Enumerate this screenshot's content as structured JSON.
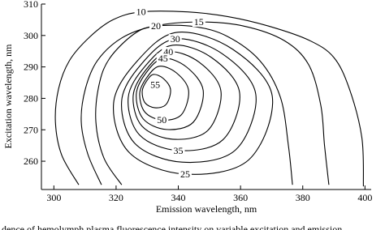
{
  "chart_data": {
    "type": "contour",
    "x_label": "Emission wavelength, nm",
    "y_label": "Excitation wavelength, nm",
    "caption": "dence of hemolymph plasma fluorescence intensity on variable excitation and emission",
    "xlim": [
      296,
      402
    ],
    "xticks": [
      300,
      320,
      340,
      360,
      380,
      400
    ],
    "ylim": [
      251,
      310
    ],
    "yticks": [
      260,
      270,
      280,
      290,
      300,
      310
    ],
    "color": "#000000",
    "contours": [
      {
        "level": 10,
        "closed": false,
        "x": [
          308,
          302.5,
          300.5,
          301.5,
          305,
          311.5,
          319,
          328,
          343,
          356,
          369,
          382,
          390,
          395,
          399,
          399.5
        ],
        "y": [
          252.5,
          262,
          272.5,
          283,
          292,
          299.5,
          305,
          307.5,
          307.5,
          306,
          303,
          298.5,
          293,
          283,
          267.5,
          252
        ]
      },
      {
        "level": 15,
        "closed": false,
        "x": [
          315.3,
          310.9,
          308.8,
          310.1,
          314,
          321.8,
          332.3,
          346.6,
          361,
          374,
          381.9,
          385.8,
          387,
          388.4
        ],
        "y": [
          252.5,
          262.3,
          272.6,
          282.9,
          292,
          299.2,
          303,
          304.3,
          303,
          298.4,
          290.7,
          277.8,
          265,
          252.5
        ]
      },
      {
        "level": 20,
        "closed": false,
        "x": [
          321.8,
          316.1,
          313.5,
          314.5,
          317.9,
          325.8,
          332.8,
          345.3,
          355.8,
          366.2,
          372.8,
          375.4,
          376.7
        ],
        "y": [
          252.5,
          261,
          272.6,
          284.2,
          292.7,
          300.5,
          303,
          302.8,
          299.7,
          292,
          280.4,
          264.9,
          252.5
        ]
      },
      {
        "level": 25,
        "closed": true,
        "x": [
          326.9,
          339.6,
          357.5,
          370.2,
          362.6,
          342.2,
          324.3,
          319.2
        ],
        "y": [
          292,
          301,
          295.6,
          280.7,
          260.4,
          255.9,
          262.7,
          278.5
        ]
      },
      {
        "level": 30,
        "closed": true,
        "x": [
          328.3,
          339,
          354.1,
          364.9,
          358.4,
          341.2,
          326.1,
          321.8
        ],
        "y": [
          291.1,
          298.9,
          294.2,
          281.3,
          263.6,
          259.7,
          265.6,
          279.3
        ]
      },
      {
        "level": 35,
        "closed": true,
        "x": [
          329.3,
          338.2,
          350.8,
          359.7,
          354.3,
          340,
          327.5,
          323.9
        ],
        "y": [
          290.2,
          296.9,
          292.9,
          281.8,
          266.8,
          263.4,
          268.4,
          280.2
        ]
      },
      {
        "level": 40,
        "closed": true,
        "x": [
          329.7,
          336.8,
          346.7,
          353.7,
          349.5,
          338.2,
          328.3,
          325.5
        ],
        "y": [
          289.2,
          294.8,
          291.5,
          282.3,
          269.8,
          267,
          271.2,
          280.9
        ]
      },
      {
        "level": 45,
        "closed": true,
        "x": [
          329.7,
          335.1,
          342.6,
          348,
          344.8,
          336.2,
          328.7,
          326.5
        ],
        "y": [
          288.2,
          292.7,
          290,
          282.5,
          272.4,
          270.1,
          273.5,
          281.4
        ]
      },
      {
        "level": 50,
        "closed": true,
        "x": [
          330,
          333.9,
          339.4,
          343.3,
          341,
          334.7,
          329.2,
          327.6
        ],
        "y": [
          286.8,
          290.2,
          288.1,
          282.5,
          274.8,
          273.1,
          275.7,
          281.7
        ]
      },
      {
        "level": 55,
        "closed": true,
        "x": [
          329.8,
          332,
          335.2,
          337.5,
          336.1,
          332.5,
          329.3,
          328.4
        ],
        "y": [
          285.5,
          287.6,
          286.3,
          282.8,
          278.1,
          277,
          278.6,
          282.3
        ]
      }
    ]
  }
}
